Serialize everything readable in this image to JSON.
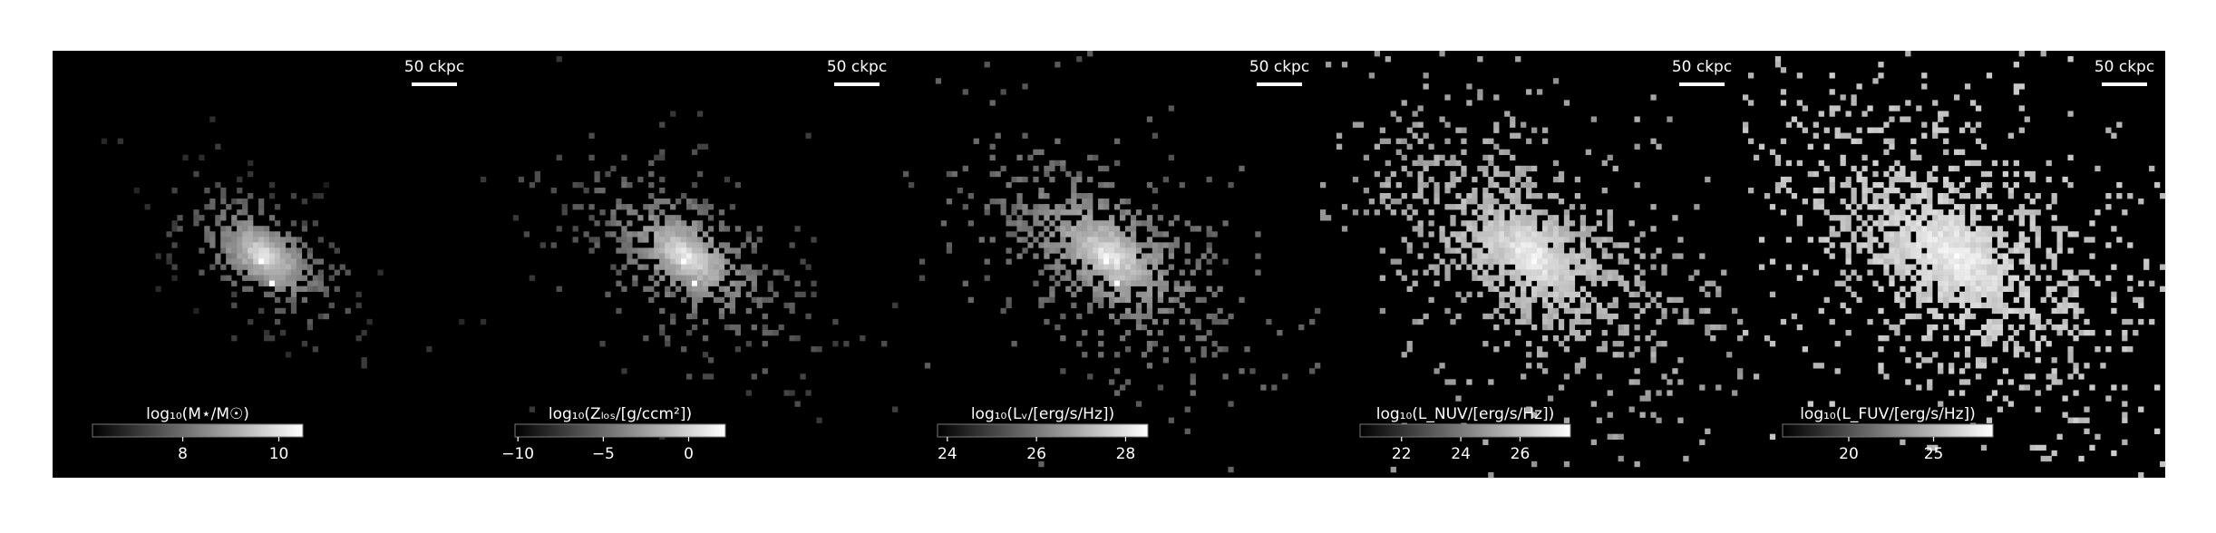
{
  "panels": [
    {
      "scale_bar": "50 ckpc",
      "colorbar": {
        "label": "log₁₀(M⋆/M☉)",
        "lim": [
          6.12,
          10.5
        ],
        "ticks": [
          8,
          10
        ]
      }
    },
    {
      "scale_bar": "50 ckpc",
      "colorbar": {
        "label": "log₁₀(Zₗₒₛ/[g/ccm²])",
        "lim": [
          -10.17,
          2.15
        ],
        "ticks": [
          {
            "value": -10,
            "label": "−10"
          },
          {
            "value": -5,
            "label": "−5"
          },
          0
        ]
      }
    },
    {
      "scale_bar": "50 ckpc",
      "colorbar": {
        "label": "log₁₀(Lᵥ/[erg/s/Hz])",
        "lim": [
          23.78,
          28.5
        ],
        "ticks": [
          24,
          26,
          28
        ]
      }
    },
    {
      "scale_bar": "50 ckpc",
      "colorbar": {
        "label": "log₁₀(L_NUV/[erg/s/Hz])",
        "lim": [
          20.6,
          27.7
        ],
        "ticks": [
          22,
          24,
          26
        ]
      }
    },
    {
      "scale_bar": "50 ckpc",
      "colorbar": {
        "label": "log₁₀(L_FUV/[erg/s/Hz])",
        "lim": [
          16.1,
          28.5
        ],
        "ticks": [
          20,
          25
        ]
      }
    }
  ]
}
